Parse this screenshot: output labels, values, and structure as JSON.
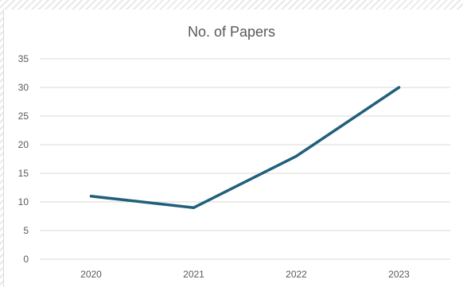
{
  "chart_data": {
    "type": "line",
    "title": "No. of Papers",
    "xlabel": "",
    "ylabel": "",
    "categories": [
      "2020",
      "2021",
      "2022",
      "2023"
    ],
    "series": [
      {
        "values": [
          11,
          9,
          18,
          30
        ]
      }
    ],
    "ylim": [
      0,
      35
    ],
    "yticks": [
      0,
      5,
      10,
      15,
      20,
      25,
      30,
      35
    ],
    "grid": true,
    "legend": "none",
    "line_color": "#215F7A",
    "grid_color": "#D9D9D9",
    "text_color": "#595959"
  }
}
